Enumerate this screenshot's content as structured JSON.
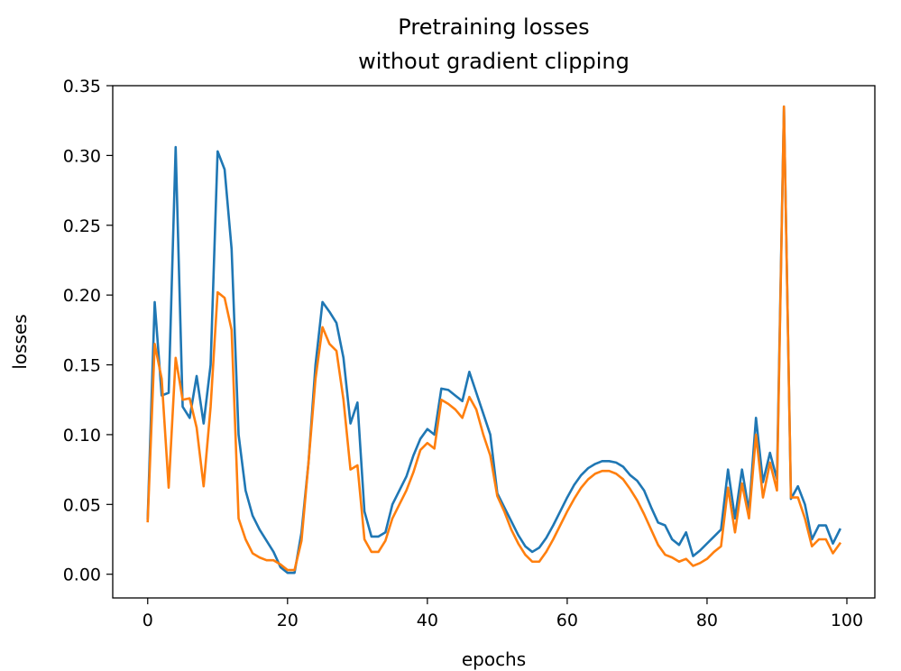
{
  "chart_data": {
    "type": "line",
    "title": [
      "Pretraining losses",
      "without gradient clipping"
    ],
    "xlabel": "epochs",
    "ylabel": "losses",
    "xlim": [
      -5,
      104
    ],
    "ylim": [
      -0.017,
      0.35
    ],
    "xticks": [
      0,
      20,
      40,
      60,
      80,
      100
    ],
    "xtick_labels": [
      "0",
      "20",
      "40",
      "60",
      "80",
      "100"
    ],
    "yticks": [
      0.0,
      0.05,
      0.1,
      0.15,
      0.2,
      0.25,
      0.3,
      0.35
    ],
    "ytick_labels": [
      "0.00",
      "0.05",
      "0.10",
      "0.15",
      "0.20",
      "0.25",
      "0.30",
      "0.35"
    ],
    "grid": false,
    "legend": null,
    "x": [
      0,
      1,
      2,
      3,
      4,
      5,
      6,
      7,
      8,
      9,
      10,
      11,
      12,
      13,
      14,
      15,
      16,
      17,
      18,
      19,
      20,
      21,
      22,
      23,
      24,
      25,
      26,
      27,
      28,
      29,
      30,
      31,
      32,
      33,
      34,
      35,
      36,
      37,
      38,
      39,
      40,
      41,
      42,
      43,
      44,
      45,
      46,
      47,
      48,
      49,
      50,
      51,
      52,
      53,
      54,
      55,
      56,
      57,
      58,
      59,
      60,
      61,
      62,
      63,
      64,
      65,
      66,
      67,
      68,
      69,
      70,
      71,
      72,
      73,
      74,
      75,
      76,
      77,
      78,
      79,
      80,
      81,
      82,
      83,
      84,
      85,
      86,
      87,
      88,
      89,
      90,
      91,
      92,
      93,
      94,
      95,
      96,
      97,
      98,
      99
    ],
    "series": [
      {
        "color": "#1f77b4",
        "values": [
          0.04,
          0.195,
          0.128,
          0.13,
          0.306,
          0.12,
          0.112,
          0.142,
          0.108,
          0.15,
          0.303,
          0.29,
          0.233,
          0.1,
          0.06,
          0.042,
          0.032,
          0.024,
          0.016,
          0.005,
          0.001,
          0.001,
          0.03,
          0.08,
          0.15,
          0.195,
          0.188,
          0.18,
          0.155,
          0.108,
          0.123,
          0.045,
          0.027,
          0.027,
          0.03,
          0.05,
          0.06,
          0.07,
          0.085,
          0.097,
          0.104,
          0.1,
          0.133,
          0.132,
          0.128,
          0.124,
          0.145,
          0.13,
          0.115,
          0.1,
          0.058,
          0.048,
          0.038,
          0.028,
          0.02,
          0.016,
          0.019,
          0.026,
          0.035,
          0.045,
          0.055,
          0.064,
          0.071,
          0.076,
          0.079,
          0.081,
          0.081,
          0.08,
          0.077,
          0.071,
          0.067,
          0.06,
          0.048,
          0.037,
          0.035,
          0.025,
          0.021,
          0.03,
          0.013,
          0.017,
          0.022,
          0.027,
          0.032,
          0.075,
          0.04,
          0.075,
          0.045,
          0.112,
          0.066,
          0.087,
          0.068,
          0.335,
          0.054,
          0.063,
          0.05,
          0.025,
          0.035,
          0.035,
          0.022,
          0.032
        ]
      },
      {
        "color": "#ff7f0e",
        "values": [
          0.038,
          0.165,
          0.14,
          0.062,
          0.155,
          0.125,
          0.126,
          0.105,
          0.063,
          0.12,
          0.202,
          0.198,
          0.175,
          0.04,
          0.025,
          0.015,
          0.012,
          0.01,
          0.01,
          0.007,
          0.003,
          0.003,
          0.024,
          0.08,
          0.14,
          0.177,
          0.165,
          0.16,
          0.125,
          0.075,
          0.078,
          0.025,
          0.016,
          0.016,
          0.024,
          0.04,
          0.05,
          0.06,
          0.073,
          0.089,
          0.094,
          0.09,
          0.125,
          0.122,
          0.118,
          0.112,
          0.127,
          0.118,
          0.1,
          0.085,
          0.056,
          0.045,
          0.032,
          0.022,
          0.014,
          0.009,
          0.009,
          0.016,
          0.025,
          0.035,
          0.045,
          0.054,
          0.062,
          0.068,
          0.072,
          0.074,
          0.074,
          0.072,
          0.068,
          0.061,
          0.053,
          0.043,
          0.032,
          0.021,
          0.014,
          0.012,
          0.009,
          0.011,
          0.006,
          0.008,
          0.011,
          0.016,
          0.02,
          0.062,
          0.03,
          0.065,
          0.04,
          0.1,
          0.055,
          0.08,
          0.06,
          0.335,
          0.055,
          0.055,
          0.04,
          0.02,
          0.025,
          0.025,
          0.015,
          0.022
        ]
      }
    ]
  }
}
